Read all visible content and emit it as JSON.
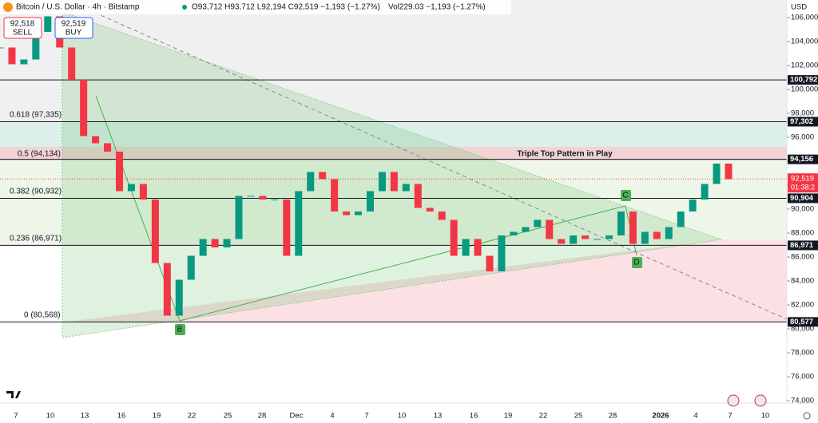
{
  "header": {
    "symbol": "Bitcoin / U.S. Dollar · 4h · Bitstamp",
    "ohlc": "O93,712 H93,712 L92,194 C92,519 −1,193 (−1.27%)",
    "volume": "Vol229.03 −1,193 (−1.27%)"
  },
  "sell": {
    "price": "92,518",
    "label": "SELL"
  },
  "buy": {
    "price": "92,519",
    "label": "BUY"
  },
  "price_axis": {
    "currency": "USD",
    "ticks": [
      {
        "value": 106000,
        "label": "106,000"
      },
      {
        "value": 104000,
        "label": "104,000"
      },
      {
        "value": 102000,
        "label": "102,000"
      },
      {
        "value": 100000,
        "label": "100,000"
      },
      {
        "value": 98000,
        "label": "98,000"
      },
      {
        "value": 96000,
        "label": "96,000"
      },
      {
        "value": 94000,
        "label": "94,000"
      },
      {
        "value": 92000,
        "label": "92,000"
      },
      {
        "value": 90000,
        "label": "90,000"
      },
      {
        "value": 88000,
        "label": "88,000"
      },
      {
        "value": 86000,
        "label": "86,000"
      },
      {
        "value": 84000,
        "label": "84,000"
      },
      {
        "value": 82000,
        "label": "82,000"
      },
      {
        "value": 80000,
        "label": "80,000"
      },
      {
        "value": 78000,
        "label": "78,000"
      },
      {
        "value": 76000,
        "label": "76,000"
      },
      {
        "value": 74000,
        "label": "74,000"
      }
    ]
  },
  "levels": [
    {
      "value": 100792,
      "label": "100,792"
    },
    {
      "value": 97302,
      "label": "97,302"
    },
    {
      "value": 94156,
      "label": "94,156"
    },
    {
      "value": 90904,
      "label": "90,904"
    },
    {
      "value": 86971,
      "label": "86,971"
    },
    {
      "value": 80577,
      "label": "80,577"
    }
  ],
  "fib_labels": [
    "0.618 (97,335)",
    "0.5 (94,134)",
    "0.382 (90,932)",
    "0.236 (86,971)",
    "0 (80,568)"
  ],
  "current": {
    "value": 92519,
    "label": "92,519",
    "countdown": "01:38:2"
  },
  "annotation": "Triple Top Pattern in Play",
  "points": [
    "B",
    "C",
    "D"
  ],
  "date_axis": [
    "7",
    "10",
    "13",
    "16",
    "19",
    "22",
    "25",
    "28",
    "Dec",
    "4",
    "7",
    "10",
    "13",
    "16",
    "19",
    "22",
    "25",
    "28",
    "2026",
    "4",
    "7",
    "10"
  ],
  "candles": {
    "close": [
      103500,
      102100,
      102500,
      104800,
      106100,
      103500,
      100800,
      96100,
      95500,
      94800,
      91500,
      92100,
      90800,
      85500,
      81100,
      84100,
      86100,
      87500,
      86800,
      87500,
      91100,
      91100,
      90800,
      90800,
      86100,
      91500,
      93100,
      92500,
      89800,
      89500,
      89800,
      91500,
      93100,
      91500,
      92100,
      90100,
      89800,
      89100,
      86100,
      87500,
      86100,
      84800,
      87800,
      88100,
      88500,
      89100,
      87500,
      87100,
      87800,
      87500,
      87500,
      87800,
      89800,
      87100,
      88100,
      87500,
      88500,
      89800,
      90800,
      92100,
      93800,
      92500
    ]
  }
}
